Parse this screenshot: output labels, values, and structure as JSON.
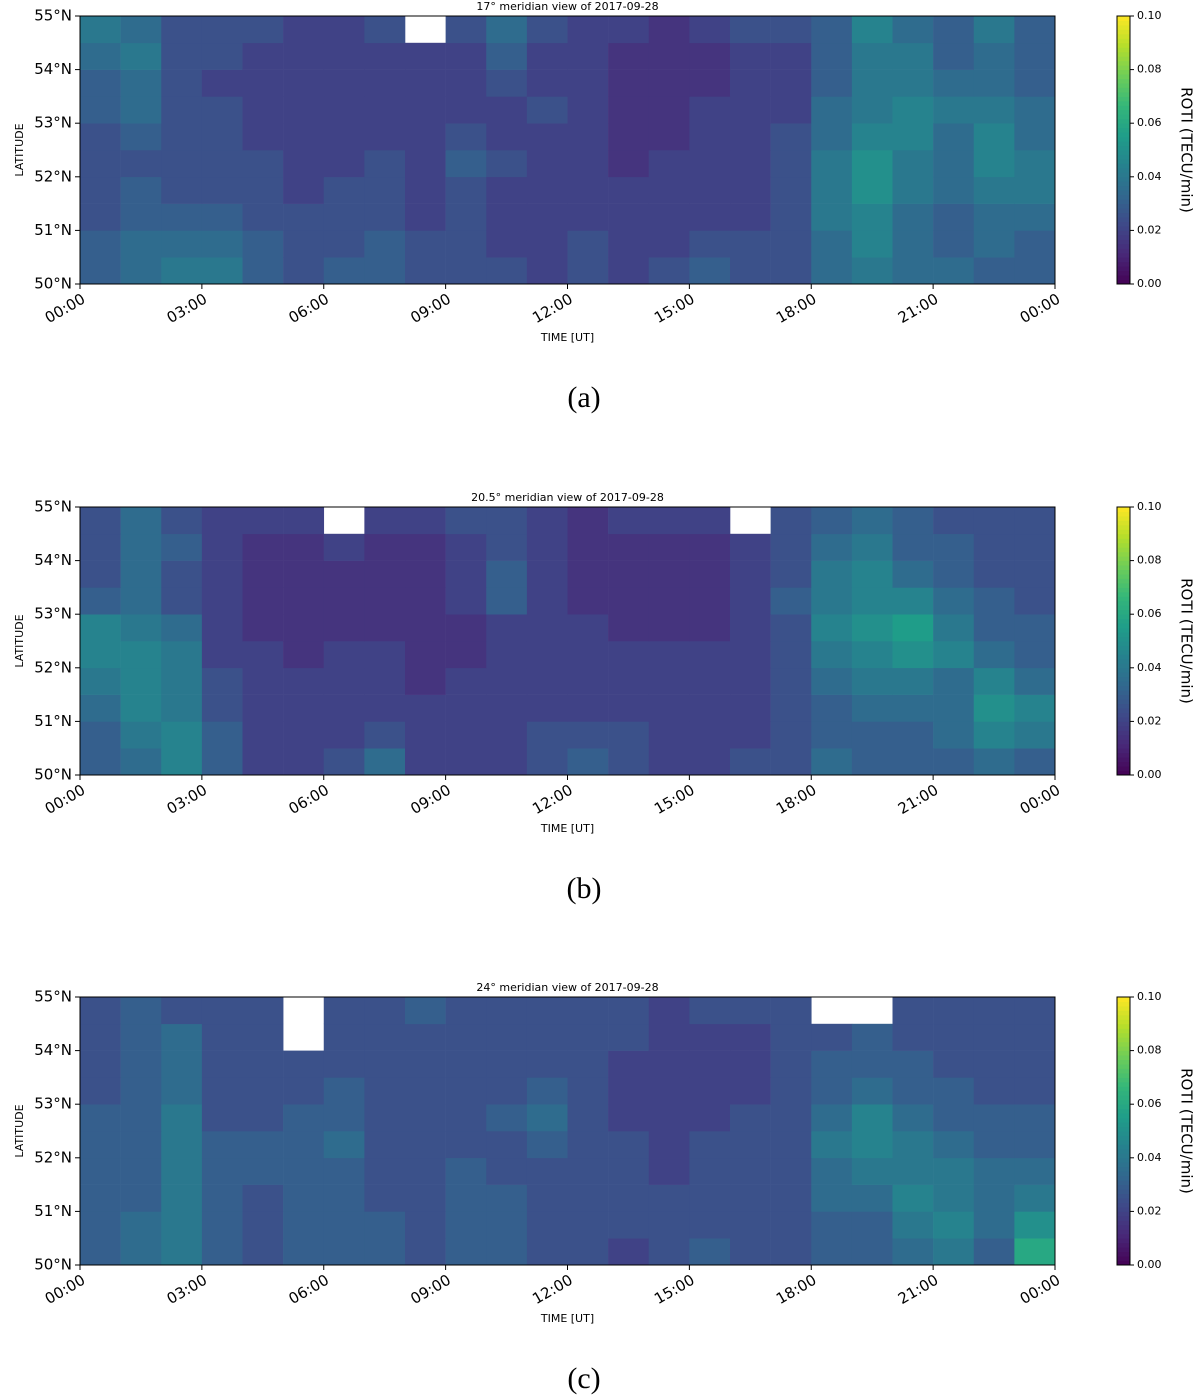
{
  "chart_data": [
    {
      "type": "heatmap",
      "title": "17° meridian view of 2017-09-28",
      "caption": "(a)",
      "xlabel": "TIME [UT]",
      "ylabel": "LATITUDE",
      "colorbar_label": "ROTI (TECU/min)",
      "cmap": "viridis",
      "xbins": [
        0,
        1,
        2,
        3,
        4,
        5,
        6,
        7,
        8,
        9,
        10,
        11,
        12,
        13,
        14,
        15,
        16,
        17,
        18,
        19,
        20,
        21,
        22,
        23,
        24
      ],
      "ybins": [
        50,
        50.5,
        51,
        51.5,
        52,
        52.5,
        53,
        53.5,
        54,
        54.5,
        55
      ],
      "z": [
        [
          0.03,
          0.035,
          0.04,
          0.04,
          0.03,
          0.025,
          0.03,
          0.03,
          0.025,
          0.025,
          0.025,
          0.02,
          0.025,
          0.02,
          0.025,
          0.03,
          0.025,
          0.025,
          0.035,
          0.04,
          0.035,
          0.035,
          0.03,
          0.03
        ],
        [
          0.03,
          0.035,
          0.035,
          0.035,
          0.03,
          0.025,
          0.025,
          0.03,
          0.025,
          0.025,
          0.02,
          0.02,
          0.025,
          0.02,
          0.02,
          0.025,
          0.025,
          0.025,
          0.035,
          0.045,
          0.035,
          0.03,
          0.035,
          0.03
        ],
        [
          0.025,
          0.03,
          0.03,
          0.03,
          0.025,
          0.025,
          0.025,
          0.025,
          0.02,
          0.025,
          0.02,
          0.02,
          0.02,
          0.02,
          0.02,
          0.02,
          0.02,
          0.025,
          0.04,
          0.045,
          0.035,
          0.03,
          0.035,
          0.035
        ],
        [
          0.025,
          0.03,
          0.025,
          0.025,
          0.025,
          0.02,
          0.025,
          0.025,
          0.02,
          0.025,
          0.02,
          0.02,
          0.02,
          0.02,
          0.02,
          0.02,
          0.02,
          0.025,
          0.04,
          0.05,
          0.04,
          0.035,
          0.04,
          0.04
        ],
        [
          0.025,
          0.025,
          0.025,
          0.025,
          0.025,
          0.02,
          0.02,
          0.025,
          0.02,
          0.03,
          0.025,
          0.02,
          0.02,
          0.015,
          0.02,
          0.02,
          0.02,
          0.025,
          0.04,
          0.05,
          0.04,
          0.035,
          0.045,
          0.04
        ],
        [
          0.025,
          0.03,
          0.025,
          0.025,
          0.02,
          0.02,
          0.02,
          0.02,
          0.02,
          0.025,
          0.02,
          0.02,
          0.02,
          0.015,
          0.015,
          0.02,
          0.02,
          0.025,
          0.035,
          0.045,
          0.045,
          0.035,
          0.045,
          0.035
        ],
        [
          0.03,
          0.035,
          0.025,
          0.025,
          0.02,
          0.02,
          0.02,
          0.02,
          0.02,
          0.02,
          0.02,
          0.025,
          0.02,
          0.015,
          0.015,
          0.02,
          0.02,
          0.02,
          0.035,
          0.04,
          0.045,
          0.04,
          0.04,
          0.035
        ],
        [
          0.03,
          0.035,
          0.025,
          0.02,
          0.02,
          0.02,
          0.02,
          0.02,
          0.02,
          0.02,
          0.025,
          0.02,
          0.02,
          0.015,
          0.015,
          0.015,
          0.02,
          0.02,
          0.03,
          0.04,
          0.04,
          0.035,
          0.035,
          0.03
        ],
        [
          0.035,
          0.04,
          0.025,
          0.025,
          0.02,
          0.02,
          0.02,
          0.02,
          0.02,
          0.02,
          0.03,
          0.02,
          0.02,
          0.015,
          0.015,
          0.015,
          0.02,
          0.02,
          0.03,
          0.04,
          0.04,
          0.03,
          0.035,
          0.03
        ],
        [
          0.04,
          0.035,
          0.025,
          0.025,
          0.025,
          0.02,
          0.02,
          0.025,
          null,
          0.025,
          0.035,
          0.025,
          0.02,
          0.02,
          0.015,
          0.02,
          0.025,
          0.025,
          0.03,
          0.045,
          0.035,
          0.03,
          0.04,
          0.03
        ]
      ],
      "xlim": [
        0,
        24
      ],
      "ylim": [
        50,
        55
      ],
      "clim": [
        0,
        0.1
      ],
      "xticks": [
        {
          "value": 0,
          "label": "00:00"
        },
        {
          "value": 3,
          "label": "03:00"
        },
        {
          "value": 6,
          "label": "06:00"
        },
        {
          "value": 9,
          "label": "09:00"
        },
        {
          "value": 12,
          "label": "12:00"
        },
        {
          "value": 15,
          "label": "15:00"
        },
        {
          "value": 18,
          "label": "18:00"
        },
        {
          "value": 21,
          "label": "21:00"
        },
        {
          "value": 24,
          "label": "00:00"
        }
      ],
      "yticks": [
        {
          "value": 50,
          "label": "50°N"
        },
        {
          "value": 51,
          "label": "51°N"
        },
        {
          "value": 52,
          "label": "52°N"
        },
        {
          "value": 53,
          "label": "53°N"
        },
        {
          "value": 54,
          "label": "54°N"
        },
        {
          "value": 55,
          "label": "55°N"
        }
      ],
      "cticks": [
        {
          "value": 0,
          "label": "0.00"
        },
        {
          "value": 0.02,
          "label": "0.02"
        },
        {
          "value": 0.04,
          "label": "0.04"
        },
        {
          "value": 0.06,
          "label": "0.06"
        },
        {
          "value": 0.08,
          "label": "0.08"
        },
        {
          "value": 0.1,
          "label": "0.10"
        }
      ]
    },
    {
      "type": "heatmap",
      "title": "20.5° meridian view of 2017-09-28",
      "caption": "(b)",
      "xlabel": "TIME [UT]",
      "ylabel": "LATITUDE",
      "colorbar_label": "ROTI (TECU/min)",
      "cmap": "viridis",
      "xbins": [
        0,
        1,
        2,
        3,
        4,
        5,
        6,
        7,
        8,
        9,
        10,
        11,
        12,
        13,
        14,
        15,
        16,
        17,
        18,
        19,
        20,
        21,
        22,
        23,
        24
      ],
      "ybins": [
        50,
        50.5,
        51,
        51.5,
        52,
        52.5,
        53,
        53.5,
        54,
        54.5,
        55
      ],
      "z": [
        [
          0.03,
          0.035,
          0.045,
          0.03,
          0.02,
          0.02,
          0.025,
          0.035,
          0.02,
          0.02,
          0.02,
          0.025,
          0.03,
          0.025,
          0.02,
          0.02,
          0.025,
          0.025,
          0.035,
          0.03,
          0.03,
          0.03,
          0.035,
          0.03
        ],
        [
          0.03,
          0.04,
          0.045,
          0.03,
          0.02,
          0.02,
          0.02,
          0.025,
          0.02,
          0.02,
          0.02,
          0.025,
          0.025,
          0.025,
          0.02,
          0.02,
          0.02,
          0.025,
          0.03,
          0.03,
          0.03,
          0.035,
          0.045,
          0.04
        ],
        [
          0.035,
          0.045,
          0.04,
          0.025,
          0.02,
          0.02,
          0.02,
          0.02,
          0.02,
          0.02,
          0.02,
          0.02,
          0.02,
          0.02,
          0.02,
          0.02,
          0.02,
          0.025,
          0.03,
          0.035,
          0.035,
          0.035,
          0.05,
          0.045
        ],
        [
          0.04,
          0.045,
          0.04,
          0.025,
          0.02,
          0.02,
          0.02,
          0.02,
          0.015,
          0.02,
          0.02,
          0.02,
          0.02,
          0.02,
          0.02,
          0.02,
          0.02,
          0.025,
          0.035,
          0.04,
          0.04,
          0.035,
          0.045,
          0.035
        ],
        [
          0.045,
          0.045,
          0.04,
          0.02,
          0.02,
          0.015,
          0.02,
          0.02,
          0.015,
          0.015,
          0.02,
          0.02,
          0.02,
          0.02,
          0.02,
          0.02,
          0.02,
          0.025,
          0.04,
          0.045,
          0.05,
          0.045,
          0.035,
          0.03
        ],
        [
          0.045,
          0.04,
          0.035,
          0.02,
          0.015,
          0.015,
          0.015,
          0.015,
          0.015,
          0.015,
          0.02,
          0.02,
          0.02,
          0.015,
          0.015,
          0.015,
          0.02,
          0.025,
          0.045,
          0.05,
          0.055,
          0.04,
          0.03,
          0.03
        ],
        [
          0.03,
          0.035,
          0.025,
          0.02,
          0.015,
          0.015,
          0.015,
          0.015,
          0.015,
          0.02,
          0.03,
          0.02,
          0.015,
          0.015,
          0.015,
          0.015,
          0.02,
          0.03,
          0.04,
          0.045,
          0.045,
          0.035,
          0.03,
          0.025
        ],
        [
          0.025,
          0.035,
          0.025,
          0.02,
          0.015,
          0.015,
          0.015,
          0.015,
          0.015,
          0.02,
          0.03,
          0.02,
          0.015,
          0.015,
          0.015,
          0.015,
          0.02,
          0.025,
          0.04,
          0.045,
          0.035,
          0.03,
          0.025,
          0.025
        ],
        [
          0.025,
          0.035,
          0.03,
          0.02,
          0.015,
          0.015,
          0.02,
          0.015,
          0.015,
          0.02,
          0.025,
          0.02,
          0.015,
          0.015,
          0.015,
          0.015,
          0.02,
          0.025,
          0.035,
          0.04,
          0.03,
          0.03,
          0.025,
          0.025
        ],
        [
          0.025,
          0.035,
          0.025,
          0.02,
          0.02,
          0.02,
          null,
          0.02,
          0.02,
          0.025,
          0.025,
          0.02,
          0.015,
          0.02,
          0.02,
          0.02,
          null,
          0.025,
          0.03,
          0.035,
          0.03,
          0.025,
          0.025,
          0.025
        ]
      ],
      "xlim": [
        0,
        24
      ],
      "ylim": [
        50,
        55
      ],
      "clim": [
        0,
        0.1
      ],
      "xticks": [
        {
          "value": 0,
          "label": "00:00"
        },
        {
          "value": 3,
          "label": "03:00"
        },
        {
          "value": 6,
          "label": "06:00"
        },
        {
          "value": 9,
          "label": "09:00"
        },
        {
          "value": 12,
          "label": "12:00"
        },
        {
          "value": 15,
          "label": "15:00"
        },
        {
          "value": 18,
          "label": "18:00"
        },
        {
          "value": 21,
          "label": "21:00"
        },
        {
          "value": 24,
          "label": "00:00"
        }
      ],
      "yticks": [
        {
          "value": 50,
          "label": "50°N"
        },
        {
          "value": 51,
          "label": "51°N"
        },
        {
          "value": 52,
          "label": "52°N"
        },
        {
          "value": 53,
          "label": "53°N"
        },
        {
          "value": 54,
          "label": "54°N"
        },
        {
          "value": 55,
          "label": "55°N"
        }
      ],
      "cticks": [
        {
          "value": 0,
          "label": "0.00"
        },
        {
          "value": 0.02,
          "label": "0.02"
        },
        {
          "value": 0.04,
          "label": "0.04"
        },
        {
          "value": 0.06,
          "label": "0.06"
        },
        {
          "value": 0.08,
          "label": "0.08"
        },
        {
          "value": 0.1,
          "label": "0.10"
        }
      ]
    },
    {
      "type": "heatmap",
      "title": "24° meridian view of 2017-09-28",
      "caption": "(c)",
      "xlabel": "TIME [UT]",
      "ylabel": "LATITUDE",
      "colorbar_label": "ROTI (TECU/min)",
      "cmap": "viridis",
      "xbins": [
        0,
        1,
        2,
        3,
        4,
        5,
        6,
        7,
        8,
        9,
        10,
        11,
        12,
        13,
        14,
        15,
        16,
        17,
        18,
        19,
        20,
        21,
        22,
        23,
        24
      ],
      "ybins": [
        50,
        50.5,
        51,
        51.5,
        52,
        52.5,
        53,
        53.5,
        54,
        54.5,
        55
      ],
      "z": [
        [
          0.03,
          0.035,
          0.04,
          0.03,
          0.025,
          0.03,
          0.03,
          0.03,
          0.025,
          0.03,
          0.03,
          0.025,
          0.025,
          0.02,
          0.025,
          0.03,
          0.025,
          0.025,
          0.03,
          0.03,
          0.035,
          0.04,
          0.03,
          0.06
        ],
        [
          0.03,
          0.035,
          0.04,
          0.03,
          0.025,
          0.03,
          0.03,
          0.03,
          0.025,
          0.03,
          0.03,
          0.025,
          0.025,
          0.025,
          0.025,
          0.025,
          0.025,
          0.025,
          0.03,
          0.03,
          0.04,
          0.045,
          0.035,
          0.05
        ],
        [
          0.03,
          0.03,
          0.04,
          0.03,
          0.025,
          0.03,
          0.03,
          0.025,
          0.025,
          0.03,
          0.03,
          0.025,
          0.025,
          0.025,
          0.025,
          0.025,
          0.025,
          0.025,
          0.035,
          0.035,
          0.045,
          0.04,
          0.035,
          0.04
        ],
        [
          0.03,
          0.03,
          0.04,
          0.03,
          0.03,
          0.03,
          0.03,
          0.025,
          0.025,
          0.03,
          0.025,
          0.025,
          0.025,
          0.025,
          0.02,
          0.025,
          0.025,
          0.025,
          0.035,
          0.04,
          0.04,
          0.04,
          0.035,
          0.035
        ],
        [
          0.03,
          0.03,
          0.04,
          0.03,
          0.03,
          0.03,
          0.035,
          0.025,
          0.025,
          0.025,
          0.025,
          0.03,
          0.025,
          0.025,
          0.02,
          0.025,
          0.025,
          0.025,
          0.04,
          0.045,
          0.04,
          0.035,
          0.03,
          0.03
        ],
        [
          0.03,
          0.03,
          0.04,
          0.025,
          0.025,
          0.03,
          0.03,
          0.025,
          0.025,
          0.025,
          0.03,
          0.035,
          0.025,
          0.02,
          0.02,
          0.02,
          0.025,
          0.025,
          0.035,
          0.045,
          0.035,
          0.03,
          0.03,
          0.03
        ],
        [
          0.025,
          0.03,
          0.035,
          0.025,
          0.025,
          0.025,
          0.03,
          0.025,
          0.025,
          0.025,
          0.025,
          0.03,
          0.025,
          0.02,
          0.02,
          0.02,
          0.02,
          0.025,
          0.03,
          0.035,
          0.03,
          0.03,
          0.025,
          0.025
        ],
        [
          0.025,
          0.03,
          0.035,
          0.025,
          0.025,
          0.025,
          0.025,
          0.025,
          0.025,
          0.025,
          0.025,
          0.025,
          0.025,
          0.02,
          0.02,
          0.02,
          0.02,
          0.025,
          0.03,
          0.03,
          0.03,
          0.025,
          0.025,
          0.025
        ],
        [
          0.025,
          0.03,
          0.035,
          0.025,
          0.025,
          null,
          0.025,
          0.025,
          0.025,
          0.025,
          0.025,
          0.025,
          0.025,
          0.025,
          0.02,
          0.02,
          0.02,
          0.025,
          0.025,
          0.03,
          0.025,
          0.025,
          0.025,
          0.025
        ],
        [
          0.025,
          0.03,
          0.025,
          0.025,
          0.025,
          null,
          0.025,
          0.025,
          0.03,
          0.025,
          0.025,
          0.025,
          0.025,
          0.025,
          0.02,
          0.025,
          0.025,
          0.025,
          null,
          null,
          0.025,
          0.025,
          0.025,
          0.025
        ]
      ],
      "xlim": [
        0,
        24
      ],
      "ylim": [
        50,
        55
      ],
      "clim": [
        0,
        0.1
      ],
      "xticks": [
        {
          "value": 0,
          "label": "00:00"
        },
        {
          "value": 3,
          "label": "03:00"
        },
        {
          "value": 6,
          "label": "06:00"
        },
        {
          "value": 9,
          "label": "09:00"
        },
        {
          "value": 12,
          "label": "12:00"
        },
        {
          "value": 15,
          "label": "15:00"
        },
        {
          "value": 18,
          "label": "18:00"
        },
        {
          "value": 21,
          "label": "21:00"
        },
        {
          "value": 24,
          "label": "00:00"
        }
      ],
      "yticks": [
        {
          "value": 50,
          "label": "50°N"
        },
        {
          "value": 51,
          "label": "51°N"
        },
        {
          "value": 52,
          "label": "52°N"
        },
        {
          "value": 53,
          "label": "53°N"
        },
        {
          "value": 54,
          "label": "54°N"
        },
        {
          "value": 55,
          "label": "55°N"
        }
      ],
      "cticks": [
        {
          "value": 0,
          "label": "0.00"
        },
        {
          "value": 0.02,
          "label": "0.02"
        },
        {
          "value": 0.04,
          "label": "0.04"
        },
        {
          "value": 0.06,
          "label": "0.06"
        },
        {
          "value": 0.08,
          "label": "0.08"
        },
        {
          "value": 0.1,
          "label": "0.10"
        }
      ]
    }
  ]
}
